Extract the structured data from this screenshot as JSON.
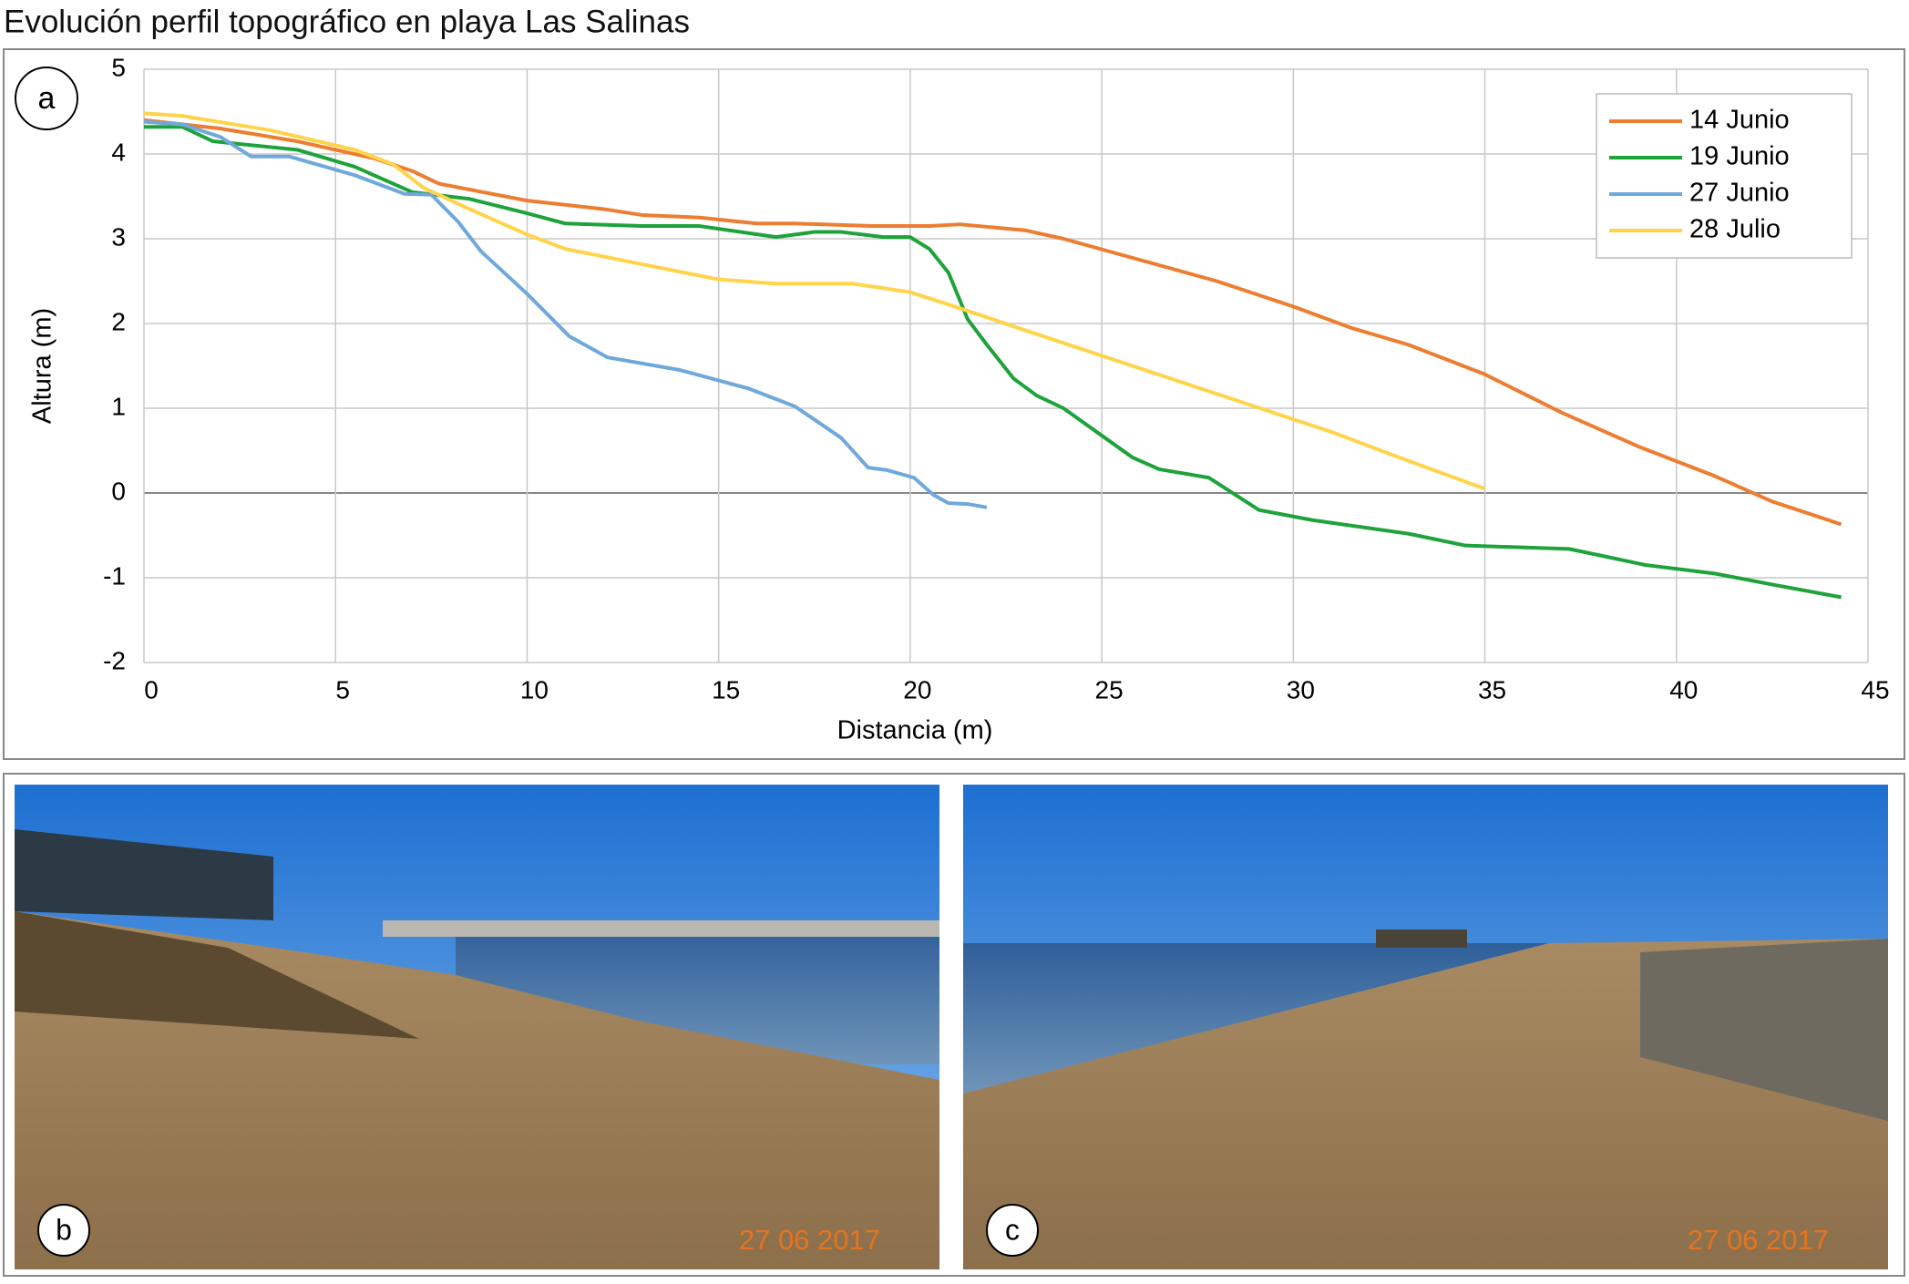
{
  "title": "Evolución perfil topográfico en playa Las Salinas",
  "chart_data": {
    "type": "line",
    "panel_label": "a",
    "xlabel": "Distancia (m)",
    "ylabel": "Altura (m)",
    "xlim": [
      0,
      45
    ],
    "ylim": [
      -2,
      5
    ],
    "xticks": [
      0,
      5,
      10,
      15,
      20,
      25,
      30,
      35,
      40,
      45
    ],
    "yticks": [
      -2,
      -1,
      0,
      1,
      2,
      3,
      4,
      5
    ],
    "grid": true,
    "legend": "upper right",
    "series": [
      {
        "name": "14 Junio",
        "color": "#ED7D31",
        "x": [
          0,
          2,
          4,
          6,
          7,
          7.7,
          10,
          12,
          13,
          14.5,
          16,
          17,
          19,
          20.5,
          21.3,
          23,
          24,
          26,
          28,
          30,
          31.5,
          33,
          35,
          37,
          39,
          41,
          42.5,
          44.3
        ],
        "values": [
          4.4,
          4.3,
          4.15,
          3.95,
          3.8,
          3.65,
          3.45,
          3.35,
          3.28,
          3.25,
          3.18,
          3.18,
          3.15,
          3.15,
          3.17,
          3.1,
          3.0,
          2.75,
          2.5,
          2.2,
          1.95,
          1.75,
          1.4,
          0.95,
          0.55,
          0.2,
          -0.1,
          -0.37
        ]
      },
      {
        "name": "19 Junio",
        "color": "#1EA33B",
        "x": [
          0,
          1,
          1.8,
          4,
          5.5,
          7,
          8.5,
          10,
          11,
          13,
          14.5,
          16.5,
          17.5,
          18.2,
          19.3,
          20,
          20.5,
          21,
          21.5,
          22,
          22.7,
          23.3,
          24,
          25.8,
          26.5,
          27.8,
          29.1,
          30.5,
          33,
          34.5,
          37.2,
          39.2,
          41,
          42.5,
          44.3
        ],
        "values": [
          4.32,
          4.32,
          4.15,
          4.05,
          3.85,
          3.55,
          3.47,
          3.3,
          3.18,
          3.15,
          3.15,
          3.02,
          3.08,
          3.08,
          3.02,
          3.02,
          2.88,
          2.6,
          2.05,
          1.75,
          1.35,
          1.15,
          1.0,
          0.42,
          0.28,
          0.18,
          -0.2,
          -0.32,
          -0.48,
          -0.62,
          -0.66,
          -0.85,
          -0.95,
          -1.08,
          -1.23
        ]
      },
      {
        "name": "27 Junio",
        "color": "#6FA8DC",
        "x": [
          0,
          1,
          2,
          2.8,
          3.8,
          5.5,
          6.8,
          7.5,
          8.2,
          8.8,
          10,
          11.1,
          12.1,
          14,
          15.8,
          17,
          18.2,
          18.9,
          19.4,
          20.1,
          20.6,
          21,
          21.5,
          22
        ],
        "values": [
          4.38,
          4.35,
          4.2,
          3.97,
          3.97,
          3.75,
          3.53,
          3.52,
          3.2,
          2.85,
          2.35,
          1.85,
          1.6,
          1.45,
          1.23,
          1.02,
          0.65,
          0.3,
          0.27,
          0.18,
          -0.02,
          -0.12,
          -0.13,
          -0.17
        ]
      },
      {
        "name": "28 Julio",
        "color": "#FFD44A",
        "x": [
          0,
          1,
          3.3,
          5.5,
          6.5,
          7.3,
          8.5,
          10,
          11,
          13,
          15,
          16.5,
          18.5,
          20,
          21.5,
          23,
          25,
          27,
          29,
          31,
          33,
          35
        ],
        "values": [
          4.48,
          4.45,
          4.28,
          4.05,
          3.88,
          3.6,
          3.35,
          3.05,
          2.88,
          2.7,
          2.52,
          2.47,
          2.47,
          2.37,
          2.15,
          1.92,
          1.62,
          1.32,
          1.02,
          0.72,
          0.38,
          0.05
        ]
      }
    ]
  },
  "photos": [
    {
      "label": "b",
      "date": "27 06 2017"
    },
    {
      "label": "c",
      "date": "27 06 2017"
    }
  ]
}
